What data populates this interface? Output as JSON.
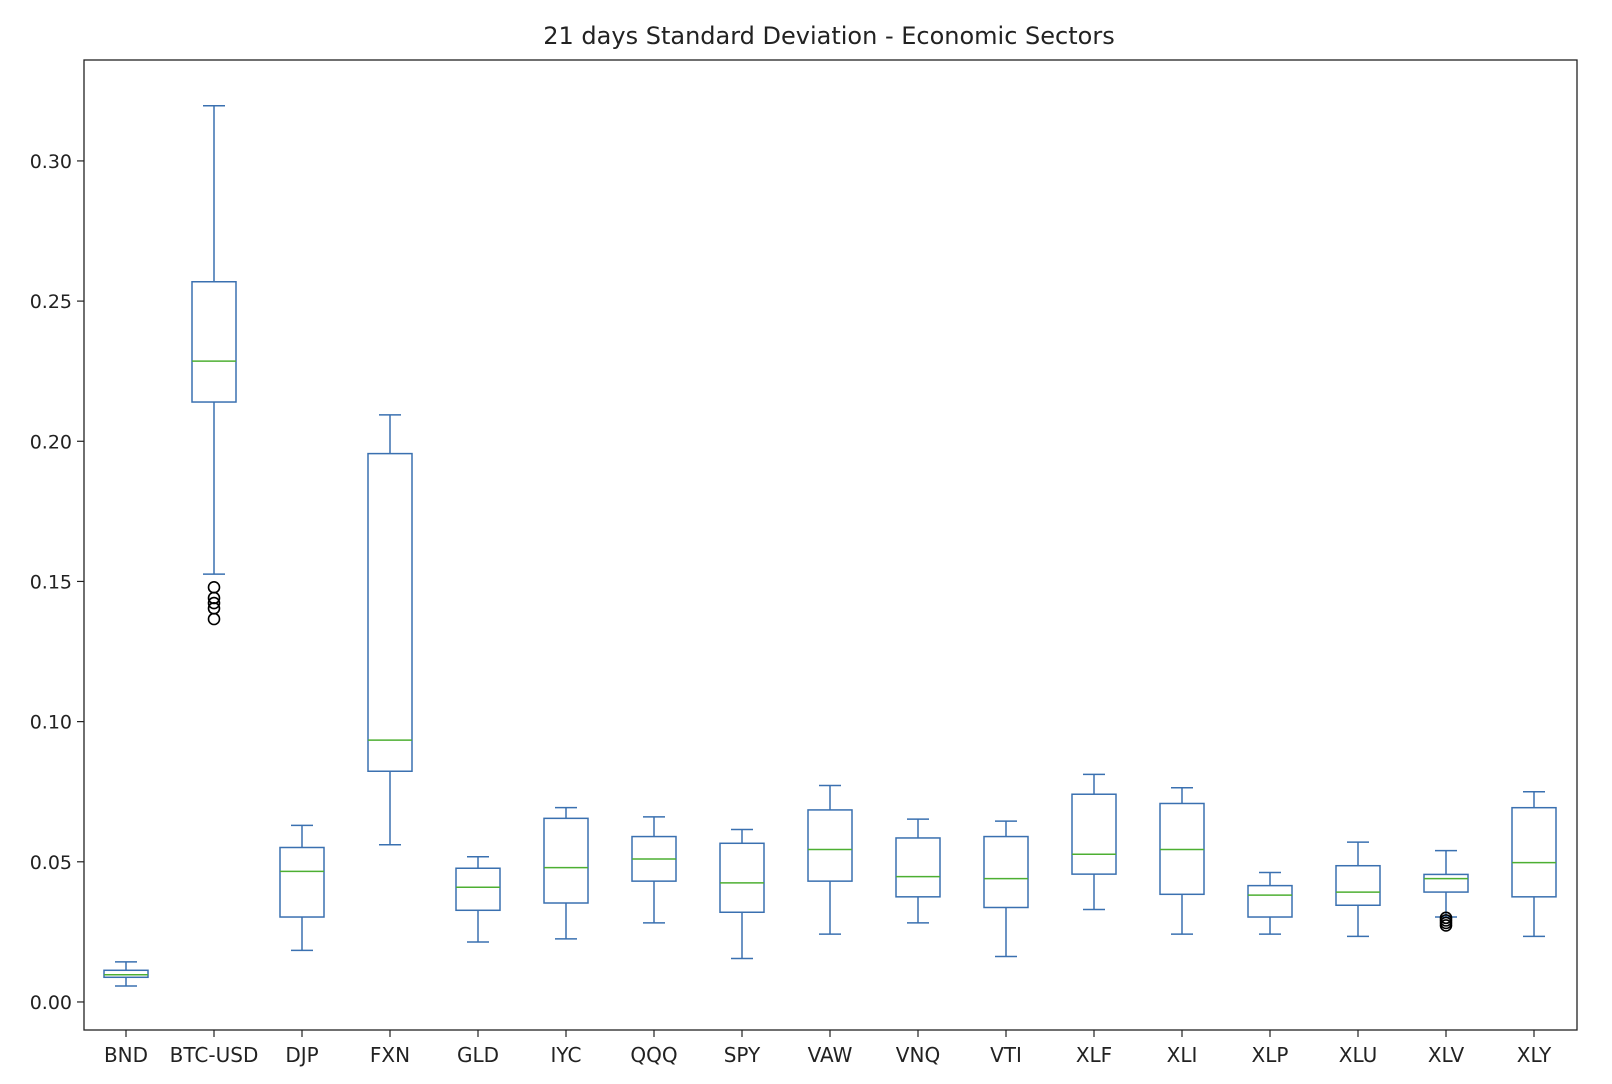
{
  "chart_data": {
    "type": "box",
    "title": "21 days Standard Deviation - Economic Sectors",
    "xlabel": "",
    "ylabel": "",
    "ylim": [
      -0.01,
      0.336
    ],
    "yticks": [
      0.0,
      0.05,
      0.1,
      0.15,
      0.2,
      0.25,
      0.3
    ],
    "ytick_labels": [
      "0.00",
      "0.05",
      "0.10",
      "0.15",
      "0.20",
      "0.25",
      "0.30"
    ],
    "grid": false,
    "colors": {
      "box": "#3a70b0",
      "median": "#4daf32",
      "outlier": "#000000",
      "axis": "#222222"
    },
    "categories": [
      "BND",
      "BTC-USD",
      "DJP",
      "FXN",
      "GLD",
      "IYC",
      "QQQ",
      "SPY",
      "VAW",
      "VNQ",
      "VTI",
      "XLF",
      "XLI",
      "XLP",
      "XLU",
      "XLV",
      "XLY"
    ],
    "boxes": [
      {
        "label": "BND",
        "whisker_low": 0.0057,
        "q1": 0.0088,
        "median": 0.0097,
        "q3": 0.0113,
        "whisker_high": 0.0143,
        "outliers": []
      },
      {
        "label": "BTC-USD",
        "whisker_low": 0.1526,
        "q1": 0.214,
        "median": 0.2286,
        "q3": 0.2569,
        "whisker_high": 0.3197,
        "outliers": [
          0.1479,
          0.1441,
          0.1423,
          0.1404,
          0.1366
        ]
      },
      {
        "label": "DJP",
        "whisker_low": 0.0184,
        "q1": 0.0303,
        "median": 0.0466,
        "q3": 0.0551,
        "whisker_high": 0.063,
        "outliers": []
      },
      {
        "label": "FXN",
        "whisker_low": 0.0561,
        "q1": 0.0823,
        "median": 0.0934,
        "q3": 0.1956,
        "whisker_high": 0.2094,
        "outliers": []
      },
      {
        "label": "GLD",
        "whisker_low": 0.0214,
        "q1": 0.0327,
        "median": 0.0409,
        "q3": 0.0477,
        "whisker_high": 0.0518,
        "outliers": []
      },
      {
        "label": "IYC",
        "whisker_low": 0.0225,
        "q1": 0.0353,
        "median": 0.0479,
        "q3": 0.0655,
        "whisker_high": 0.0693,
        "outliers": []
      },
      {
        "label": "QQQ",
        "whisker_low": 0.0282,
        "q1": 0.0431,
        "median": 0.051,
        "q3": 0.059,
        "whisker_high": 0.066,
        "outliers": []
      },
      {
        "label": "SPY",
        "whisker_low": 0.0155,
        "q1": 0.032,
        "median": 0.0425,
        "q3": 0.0566,
        "whisker_high": 0.0615,
        "outliers": []
      },
      {
        "label": "VAW",
        "whisker_low": 0.0242,
        "q1": 0.0431,
        "median": 0.0544,
        "q3": 0.0685,
        "whisker_high": 0.0772,
        "outliers": []
      },
      {
        "label": "VNQ",
        "whisker_low": 0.0282,
        "q1": 0.0375,
        "median": 0.0447,
        "q3": 0.0585,
        "whisker_high": 0.0652,
        "outliers": []
      },
      {
        "label": "VTI",
        "whisker_low": 0.0162,
        "q1": 0.0337,
        "median": 0.044,
        "q3": 0.059,
        "whisker_high": 0.0645,
        "outliers": []
      },
      {
        "label": "XLF",
        "whisker_low": 0.033,
        "q1": 0.0456,
        "median": 0.0527,
        "q3": 0.0741,
        "whisker_high": 0.0812,
        "outliers": []
      },
      {
        "label": "XLI",
        "whisker_low": 0.0242,
        "q1": 0.0384,
        "median": 0.0544,
        "q3": 0.0708,
        "whisker_high": 0.0764,
        "outliers": []
      },
      {
        "label": "XLP",
        "whisker_low": 0.0242,
        "q1": 0.0303,
        "median": 0.0381,
        "q3": 0.0415,
        "whisker_high": 0.0462,
        "outliers": []
      },
      {
        "label": "XLU",
        "whisker_low": 0.0234,
        "q1": 0.0345,
        "median": 0.0392,
        "q3": 0.0486,
        "whisker_high": 0.057,
        "outliers": []
      },
      {
        "label": "XLV",
        "whisker_low": 0.0303,
        "q1": 0.0392,
        "median": 0.044,
        "q3": 0.0455,
        "whisker_high": 0.054,
        "outliers": [
          0.03,
          0.0291,
          0.0282,
          0.0273
        ]
      },
      {
        "label": "XLY",
        "whisker_low": 0.0234,
        "q1": 0.0375,
        "median": 0.0497,
        "q3": 0.0693,
        "whisker_high": 0.075,
        "outliers": []
      }
    ]
  }
}
